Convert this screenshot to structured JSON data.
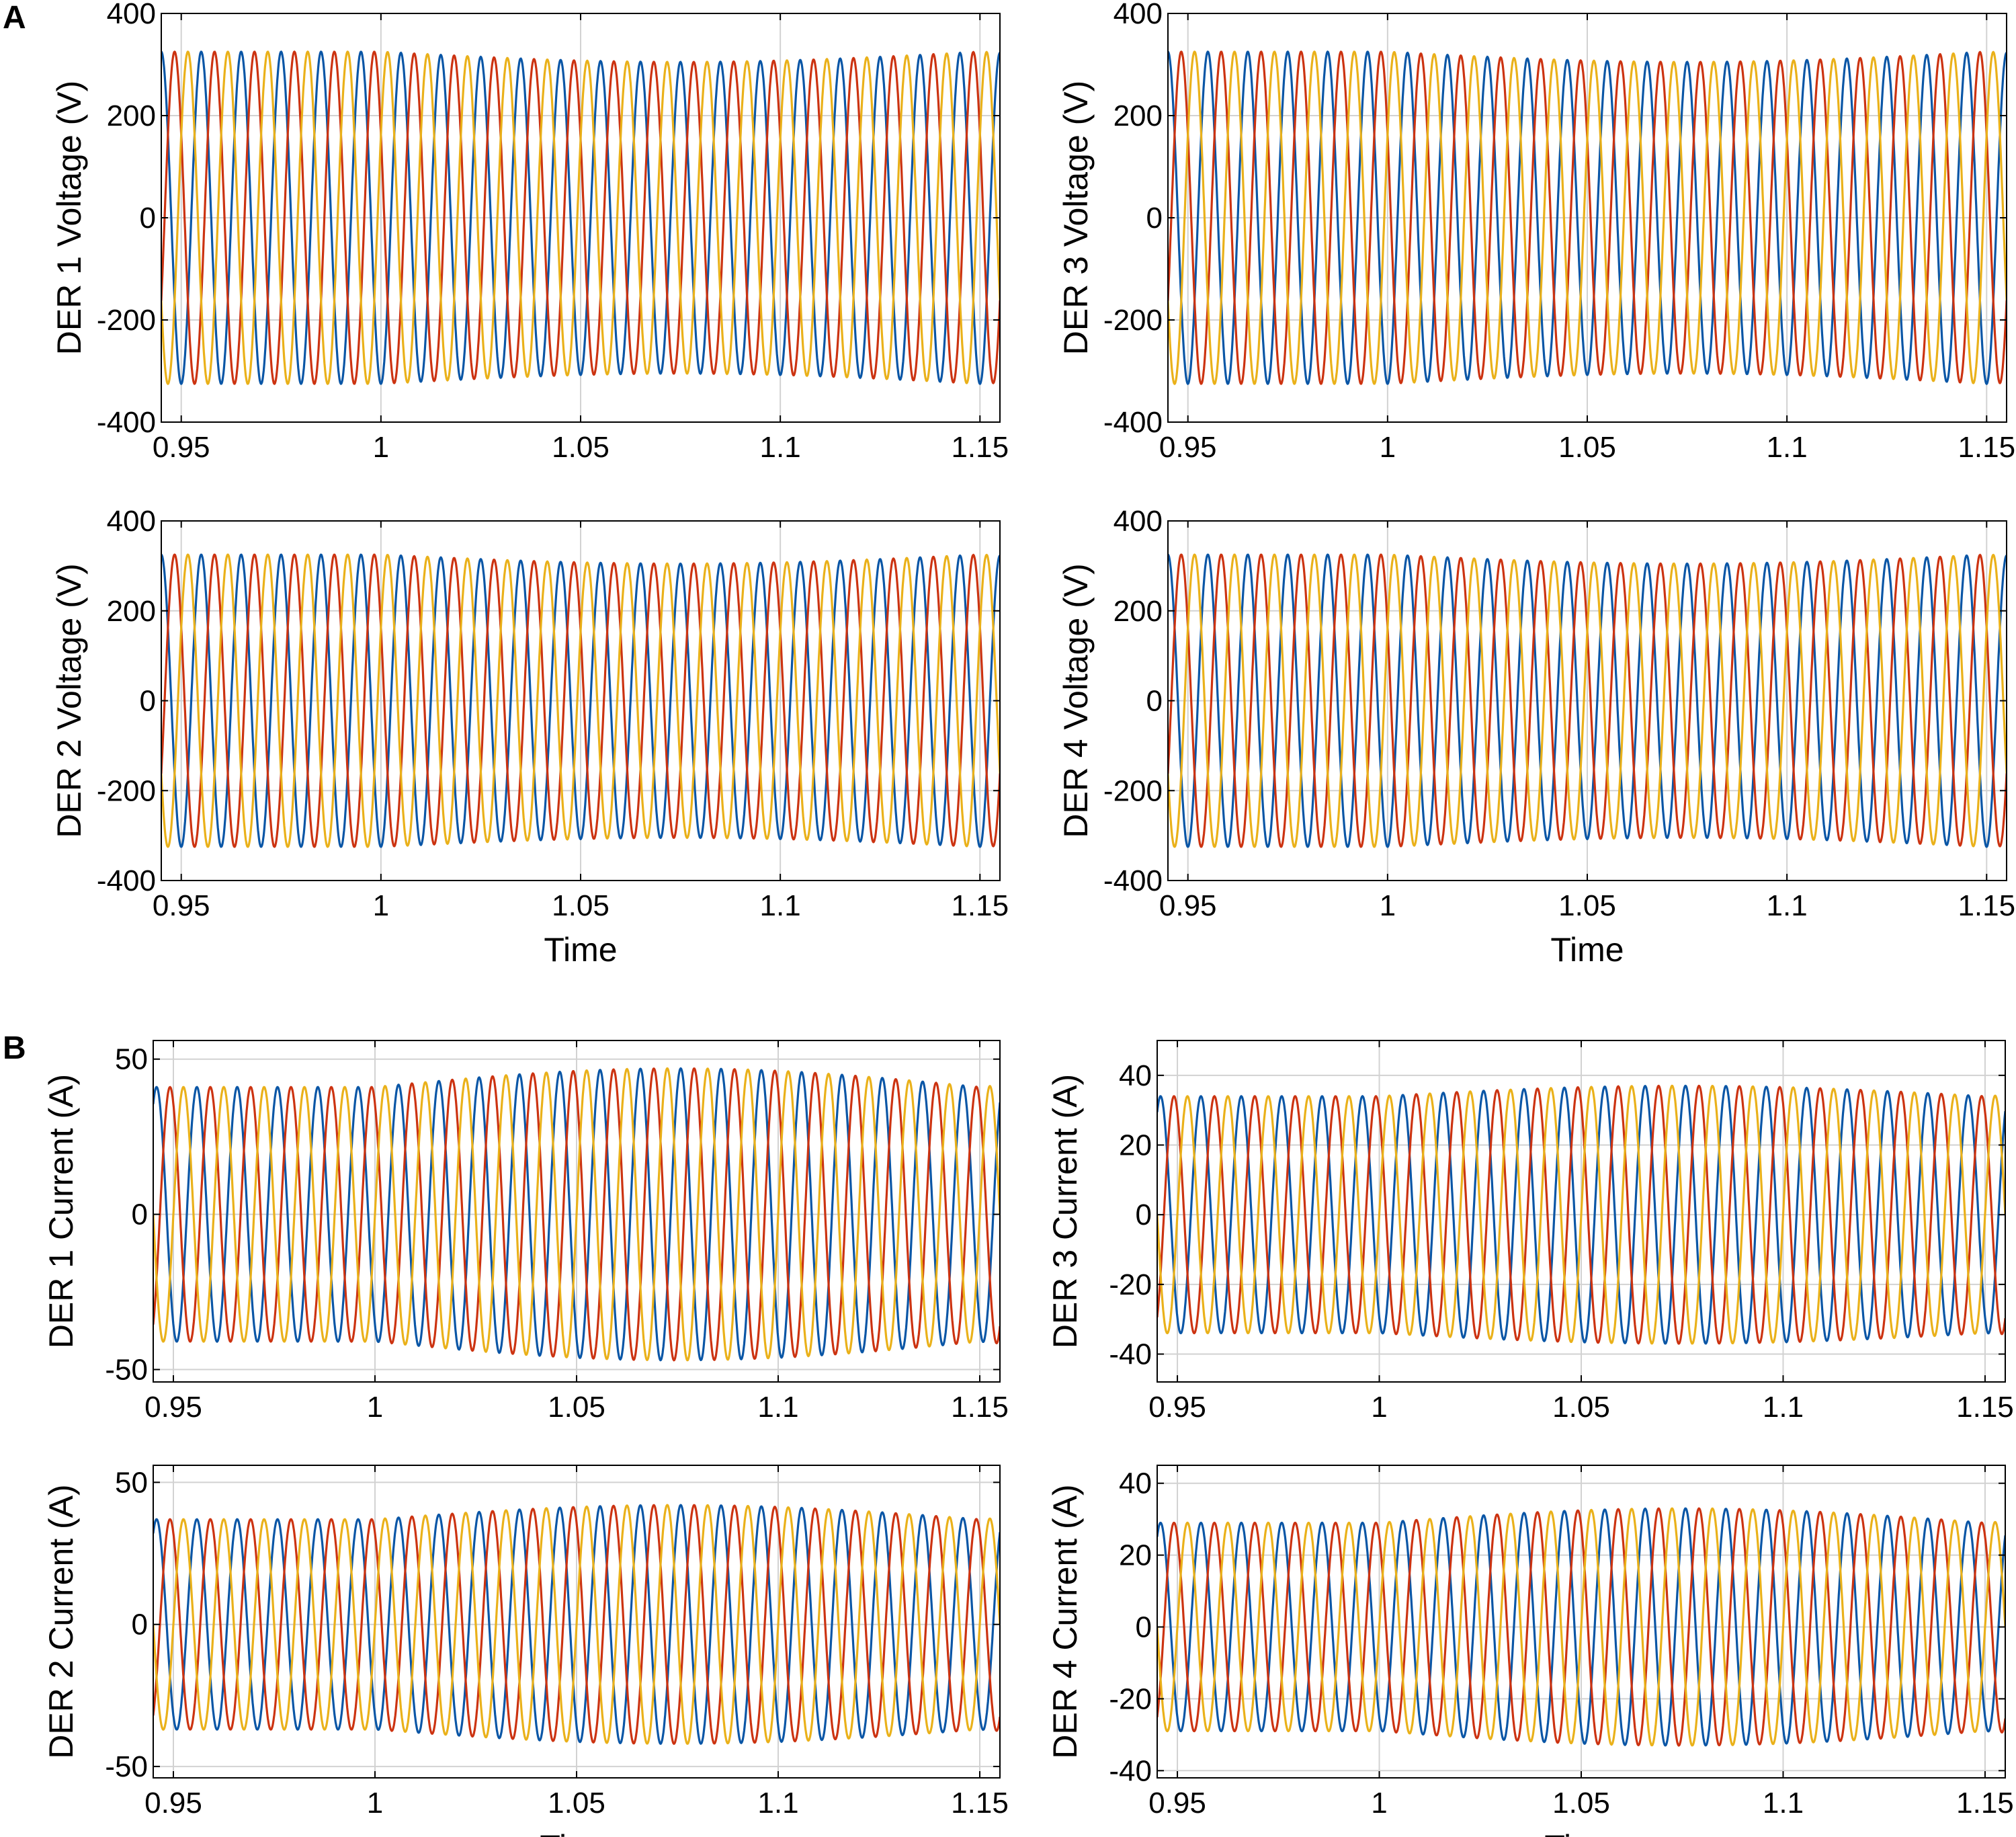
{
  "panel_labels": [
    "A",
    "B"
  ],
  "colors": {
    "phase_a": "#0a56a6",
    "phase_b": "#cc3311",
    "phase_c": "#eab11a",
    "grid": "#d2d2d2"
  },
  "chart_data": [
    {
      "type": "line",
      "panel": "A",
      "title": "",
      "ylabel": "DER 1 Voltage (V)",
      "xlabel": "",
      "xlim": [
        0.945,
        1.155
      ],
      "ylim": [
        -400,
        400
      ],
      "xticks": [
        0.95,
        1,
        1.05,
        1.1,
        1.15
      ],
      "yticks": [
        -400,
        -200,
        0,
        200,
        400
      ],
      "grid": true,
      "waveform": {
        "frequency_hz": 100,
        "amplitude_before": 325,
        "amplitude_after_min": 305,
        "amplitude_after_max": 325,
        "event_time": 1.0,
        "phase_deg": [
          90,
          -30,
          210
        ]
      },
      "series": [
        {
          "color": "#0a56a6"
        },
        {
          "color": "#cc3311"
        },
        {
          "color": "#eab11a"
        }
      ]
    },
    {
      "type": "line",
      "panel": "A",
      "title": "",
      "ylabel": "DER 3 Voltage (V)",
      "xlabel": "",
      "xlim": [
        0.945,
        1.155
      ],
      "ylim": [
        -400,
        400
      ],
      "xticks": [
        0.95,
        1,
        1.05,
        1.1,
        1.15
      ],
      "yticks": [
        -400,
        -200,
        0,
        200,
        400
      ],
      "grid": true,
      "waveform": {
        "frequency_hz": 100,
        "amplitude_before": 325,
        "amplitude_after_min": 305,
        "amplitude_after_max": 325,
        "event_time": 1.0,
        "phase_deg": [
          90,
          -30,
          210
        ]
      },
      "series": [
        {
          "color": "#0a56a6"
        },
        {
          "color": "#cc3311"
        },
        {
          "color": "#eab11a"
        }
      ]
    },
    {
      "type": "line",
      "panel": "A",
      "title": "",
      "ylabel": "DER 2 Voltage (V)",
      "xlabel": "Time",
      "xlim": [
        0.945,
        1.155
      ],
      "ylim": [
        -400,
        400
      ],
      "xticks": [
        0.95,
        1,
        1.05,
        1.1,
        1.15
      ],
      "yticks": [
        -400,
        -200,
        0,
        200,
        400
      ],
      "grid": true,
      "waveform": {
        "frequency_hz": 100,
        "amplitude_before": 325,
        "amplitude_after_min": 305,
        "amplitude_after_max": 325,
        "event_time": 1.0,
        "phase_deg": [
          90,
          -30,
          210
        ]
      },
      "series": [
        {
          "color": "#0a56a6"
        },
        {
          "color": "#cc3311"
        },
        {
          "color": "#eab11a"
        }
      ]
    },
    {
      "type": "line",
      "panel": "A",
      "title": "",
      "ylabel": "DER 4 Voltage (V)",
      "xlabel": "Time",
      "xlim": [
        0.945,
        1.155
      ],
      "ylim": [
        -400,
        400
      ],
      "xticks": [
        0.95,
        1,
        1.05,
        1.1,
        1.15
      ],
      "yticks": [
        -400,
        -200,
        0,
        200,
        400
      ],
      "grid": true,
      "waveform": {
        "frequency_hz": 100,
        "amplitude_before": 325,
        "amplitude_after_min": 305,
        "amplitude_after_max": 325,
        "event_time": 1.0,
        "phase_deg": [
          90,
          -30,
          210
        ]
      },
      "series": [
        {
          "color": "#0a56a6"
        },
        {
          "color": "#cc3311"
        },
        {
          "color": "#eab11a"
        }
      ]
    },
    {
      "type": "line",
      "panel": "B",
      "title": "",
      "ylabel": "DER 1 Current (A)",
      "xlabel": "",
      "xlim": [
        0.945,
        1.155
      ],
      "ylim": [
        -54,
        56
      ],
      "xticks": [
        0.95,
        1,
        1.05,
        1.1,
        1.15
      ],
      "yticks": [
        -50,
        0,
        50
      ],
      "grid": true,
      "waveform": {
        "frequency_hz": 100,
        "amplitude_before": 41,
        "amplitude_after_min": 41,
        "amplitude_after_max": 47,
        "event_time": 1.0,
        "phase_deg": [
          60,
          -60,
          180
        ]
      },
      "series": [
        {
          "color": "#0a56a6"
        },
        {
          "color": "#cc3311"
        },
        {
          "color": "#eab11a"
        }
      ]
    },
    {
      "type": "line",
      "panel": "B",
      "title": "",
      "ylabel": "DER 3 Current (A)",
      "xlabel": "",
      "xlim": [
        0.945,
        1.155
      ],
      "ylim": [
        -48,
        50
      ],
      "xticks": [
        0.95,
        1,
        1.05,
        1.1,
        1.15
      ],
      "yticks": [
        -40,
        -20,
        0,
        20,
        40
      ],
      "grid": true,
      "waveform": {
        "frequency_hz": 100,
        "amplitude_before": 34,
        "amplitude_after_min": 34,
        "amplitude_after_max": 37,
        "event_time": 1.0,
        "phase_deg": [
          60,
          -60,
          180
        ]
      },
      "series": [
        {
          "color": "#0a56a6"
        },
        {
          "color": "#cc3311"
        },
        {
          "color": "#eab11a"
        }
      ]
    },
    {
      "type": "line",
      "panel": "B",
      "title": "",
      "ylabel": "DER 2 Current (A)",
      "xlabel": "Time",
      "xlim": [
        0.945,
        1.155
      ],
      "ylim": [
        -54,
        56
      ],
      "xticks": [
        0.95,
        1,
        1.05,
        1.1,
        1.15
      ],
      "yticks": [
        -50,
        0,
        50
      ],
      "grid": true,
      "waveform": {
        "frequency_hz": 100,
        "amplitude_before": 37,
        "amplitude_after_min": 37,
        "amplitude_after_max": 42,
        "event_time": 1.0,
        "phase_deg": [
          60,
          -60,
          180
        ]
      },
      "series": [
        {
          "color": "#0a56a6"
        },
        {
          "color": "#cc3311"
        },
        {
          "color": "#eab11a"
        }
      ]
    },
    {
      "type": "line",
      "panel": "B",
      "title": "",
      "ylabel": "DER 4 Current (A)",
      "xlabel": "Time",
      "xlim": [
        0.945,
        1.155
      ],
      "ylim": [
        -42,
        45
      ],
      "xticks": [
        0.95,
        1,
        1.05,
        1.1,
        1.15
      ],
      "yticks": [
        -40,
        -20,
        0,
        20,
        40
      ],
      "grid": true,
      "waveform": {
        "frequency_hz": 100,
        "amplitude_before": 29,
        "amplitude_after_min": 29,
        "amplitude_after_max": 33,
        "event_time": 1.0,
        "phase_deg": [
          60,
          -60,
          180
        ]
      },
      "series": [
        {
          "color": "#0a56a6"
        },
        {
          "color": "#cc3311"
        },
        {
          "color": "#eab11a"
        }
      ]
    }
  ]
}
